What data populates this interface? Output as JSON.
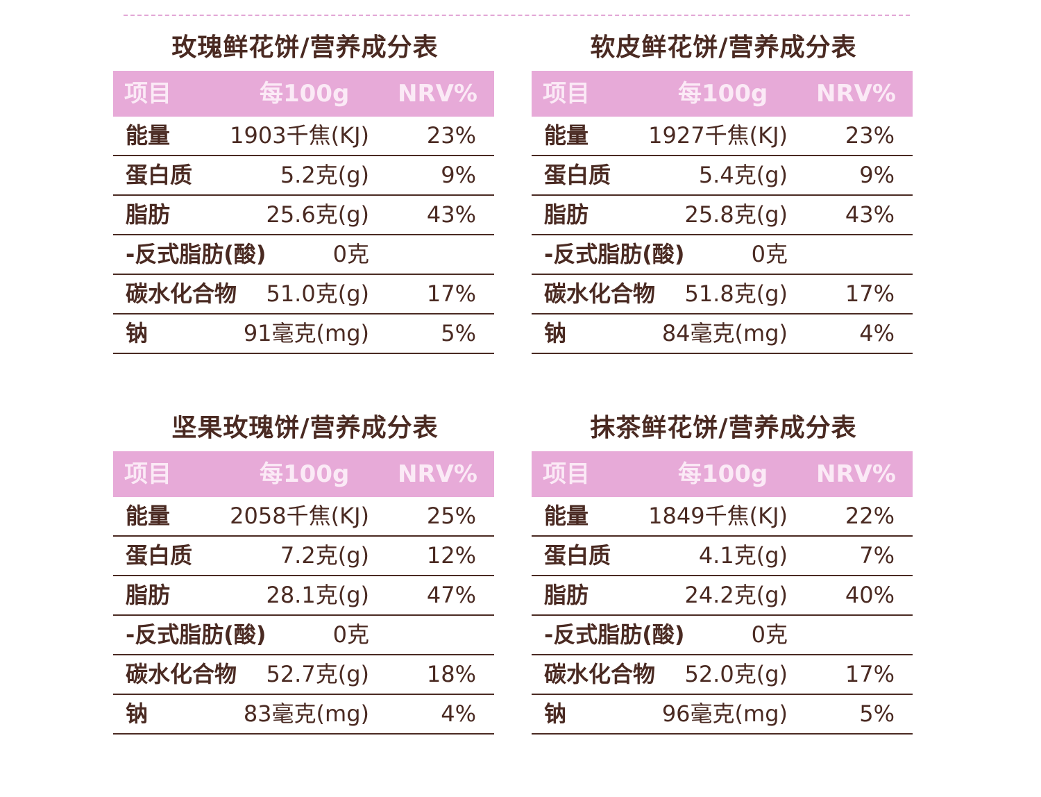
{
  "tables": [
    {
      "title": "玫瑰鲜花饼/营养成分表",
      "headers": {
        "item": "项目",
        "per100g": "每100g",
        "nrv": "NRV%"
      },
      "rows": [
        {
          "name": "能量",
          "value": "1903千焦(KJ)",
          "nrv": "23%"
        },
        {
          "name": "蛋白质",
          "value": "5.2克(g)",
          "nrv": "9%"
        },
        {
          "name": "脂肪",
          "value": "25.6克(g)",
          "nrv": "43%"
        },
        {
          "name": "-反式脂肪(酸)",
          "value": "0克",
          "nrv": ""
        },
        {
          "name": "碳水化合物",
          "value": "51.0克(g)",
          "nrv": "17%"
        },
        {
          "name": "钠",
          "value": "91毫克(mg)",
          "nrv": "5%"
        }
      ]
    },
    {
      "title": "软皮鲜花饼/营养成分表",
      "headers": {
        "item": "项目",
        "per100g": "每100g",
        "nrv": "NRV%"
      },
      "rows": [
        {
          "name": "能量",
          "value": "1927千焦(KJ)",
          "nrv": "23%"
        },
        {
          "name": "蛋白质",
          "value": "5.4克(g)",
          "nrv": "9%"
        },
        {
          "name": "脂肪",
          "value": "25.8克(g)",
          "nrv": "43%"
        },
        {
          "name": "-反式脂肪(酸)",
          "value": "0克",
          "nrv": ""
        },
        {
          "name": "碳水化合物",
          "value": "51.8克(g)",
          "nrv": "17%"
        },
        {
          "name": "钠",
          "value": "84毫克(mg)",
          "nrv": "4%"
        }
      ]
    },
    {
      "title": "坚果玫瑰饼/营养成分表",
      "headers": {
        "item": "项目",
        "per100g": "每100g",
        "nrv": "NRV%"
      },
      "rows": [
        {
          "name": "能量",
          "value": "2058千焦(KJ)",
          "nrv": "25%"
        },
        {
          "name": "蛋白质",
          "value": "7.2克(g)",
          "nrv": "12%"
        },
        {
          "name": "脂肪",
          "value": "28.1克(g)",
          "nrv": "47%"
        },
        {
          "name": "-反式脂肪(酸)",
          "value": "0克",
          "nrv": ""
        },
        {
          "name": "碳水化合物",
          "value": "52.7克(g)",
          "nrv": "18%"
        },
        {
          "name": "钠",
          "value": "83毫克(mg)",
          "nrv": "4%"
        }
      ]
    },
    {
      "title": "抹茶鲜花饼/营养成分表",
      "headers": {
        "item": "项目",
        "per100g": "每100g",
        "nrv": "NRV%"
      },
      "rows": [
        {
          "name": "能量",
          "value": "1849千焦(KJ)",
          "nrv": "22%"
        },
        {
          "name": "蛋白质",
          "value": "4.1克(g)",
          "nrv": "7%"
        },
        {
          "name": "脂肪",
          "value": "24.2克(g)",
          "nrv": "40%"
        },
        {
          "name": "-反式脂肪(酸)",
          "value": "0克",
          "nrv": ""
        },
        {
          "name": "碳水化合物",
          "value": "52.0克(g)",
          "nrv": "17%"
        },
        {
          "name": "钠",
          "value": "96毫克(mg)",
          "nrv": "5%"
        }
      ]
    }
  ]
}
